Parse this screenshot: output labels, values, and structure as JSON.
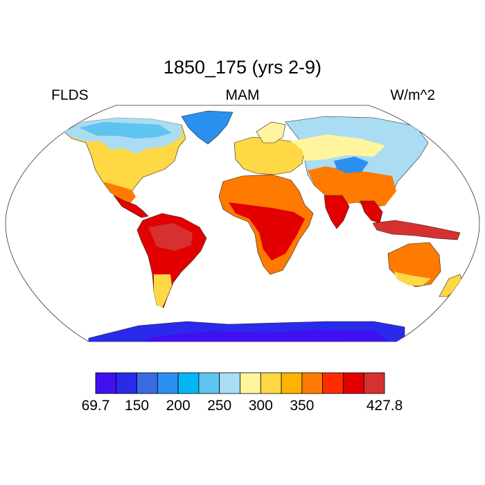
{
  "figure": {
    "title": "1850_175 (yrs 2-9)",
    "left_label": "FLDS",
    "center_label": "MAM",
    "right_label": "W/m^2"
  },
  "colorbar": {
    "colors": [
      "#4010f0",
      "#2a2aeb",
      "#3a6ae0",
      "#2a90f0",
      "#00b6f5",
      "#5ec4f0",
      "#aadcf3",
      "#fff59e",
      "#ffd845",
      "#ffb200",
      "#ff7a00",
      "#ff2c00",
      "#e20000",
      "#d63030"
    ],
    "labels": [
      "69.7",
      "150",
      "200",
      "250",
      "300",
      "350",
      "427.8"
    ]
  },
  "legend": {
    "palette": [
      "#4010f0",
      "#2a2aeb",
      "#3a6ae0",
      "#2a90f0",
      "#00b6f5",
      "#5ec4f0",
      "#aadcf3",
      "#fff59e",
      "#ffd845",
      "#ffb200",
      "#ff7a00",
      "#ff2c00",
      "#e20000",
      "#d63030"
    ]
  }
}
